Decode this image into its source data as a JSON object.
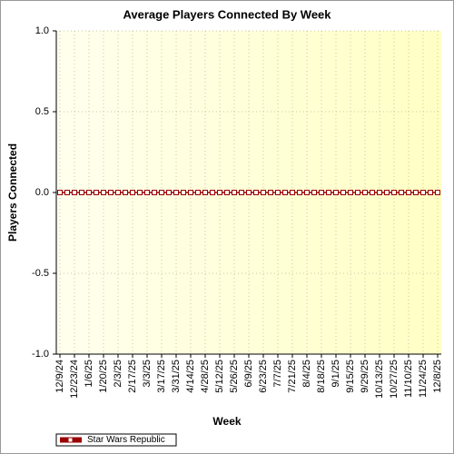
{
  "chart_data": {
    "type": "line",
    "title": "Average Players Connected By Week",
    "xlabel": "Week",
    "ylabel": "Players Connected",
    "categories": [
      "12/9/24",
      null,
      "12/23/24",
      null,
      "1/6/25",
      null,
      "1/20/25",
      null,
      "2/3/25",
      null,
      "2/17/25",
      null,
      "3/3/25",
      null,
      "3/17/25",
      null,
      "3/31/25",
      null,
      "4/14/25",
      null,
      "4/28/25",
      null,
      "5/12/25",
      null,
      "5/26/25",
      null,
      "6/9/25",
      null,
      "6/23/25",
      null,
      "7/7/25",
      null,
      "7/21/25",
      null,
      "8/4/25",
      null,
      "8/18/25",
      null,
      "9/1/25",
      null,
      "9/15/25",
      null,
      "9/29/25",
      null,
      "10/13/25",
      null,
      "10/27/25",
      null,
      "11/10/25",
      null,
      "11/24/25",
      null,
      "12/8/25"
    ],
    "series": [
      {
        "name": "Star Wars Republic",
        "color": "#990000",
        "values": [
          0,
          0,
          0,
          0,
          0,
          0,
          0,
          0,
          0,
          0,
          0,
          0,
          0,
          0,
          0,
          0,
          0,
          0,
          0,
          0,
          0,
          0,
          0,
          0,
          0,
          0,
          0,
          0,
          0,
          0,
          0,
          0,
          0,
          0,
          0,
          0,
          0,
          0,
          0,
          0,
          0,
          0,
          0,
          0,
          0,
          0,
          0,
          0,
          0,
          0,
          0,
          0,
          0
        ]
      }
    ],
    "ylim": [
      -1,
      1
    ],
    "yticks": [
      {
        "value": -1,
        "label": "-1.0"
      },
      -0.5,
      {
        "value": 0,
        "label": "0.0"
      },
      0.5,
      {
        "value": 1,
        "label": "1.0"
      }
    ],
    "grid": true,
    "legend": "bottom-left"
  }
}
